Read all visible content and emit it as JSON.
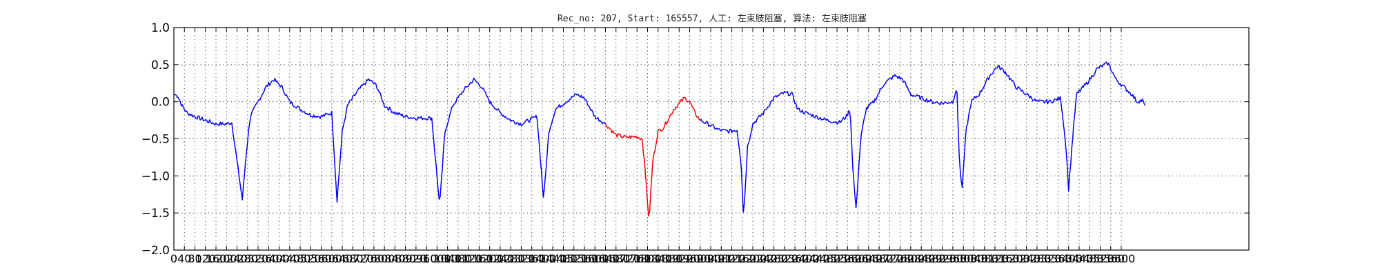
{
  "chart_data": {
    "type": "line",
    "title": "Rec_no: 207, Start: 165557, 人工: 左束肢阻塞, 算法: 左束肢阻塞",
    "xlabel": "",
    "ylabel": "",
    "xlim": [
      0,
      3800
    ],
    "ylim": [
      -2.0,
      1.0
    ],
    "grid": true,
    "yticks": [
      1.0,
      0.5,
      0.0,
      -0.5,
      -1.0,
      -1.5,
      -2.0
    ],
    "ytick_labels": [
      "1.0",
      "0.5",
      "0.0",
      "−0.5",
      "−1.0",
      "−1.5",
      "−2.0"
    ],
    "xticks": [
      0,
      40,
      80,
      120,
      160,
      200,
      240,
      280,
      320,
      360,
      400,
      440,
      480,
      520,
      560,
      600,
      640,
      680,
      720,
      760,
      800,
      840,
      880,
      920,
      960,
      1000,
      1040,
      1080,
      1120,
      1160,
      1200,
      1240,
      1280,
      1320,
      1360,
      1400,
      1440,
      1480,
      1520,
      1560,
      1600,
      1640,
      1680,
      1720,
      1760,
      1800,
      1840,
      1880,
      1920,
      1960,
      2000,
      2040,
      2080,
      2120,
      2160,
      2200,
      2240,
      2280,
      2320,
      2360,
      2400,
      2440,
      2480,
      2520,
      2560,
      2600,
      2640,
      2680,
      2720,
      2760,
      2800,
      2840,
      2880,
      2920,
      2960,
      3000,
      3040,
      3080,
      3120,
      3160,
      3200,
      3240,
      3280,
      3320,
      3360,
      3400,
      3440,
      3480,
      3520,
      3560,
      3600
    ],
    "xtick_labels": [
      "0",
      "40",
      "80",
      "120",
      "160",
      "200",
      "240",
      "280",
      "320",
      "360",
      "400",
      "440",
      "480",
      "520",
      "560",
      "600",
      "640",
      "680",
      "720",
      "760",
      "800",
      "840",
      "880",
      "920",
      "960",
      "1000",
      "1040",
      "1080",
      "1120",
      "1160",
      "1200",
      "1240",
      "1280",
      "1320",
      "1360",
      "1400",
      "1440",
      "1480",
      "1520",
      "1560",
      "1600",
      "1640",
      "1680",
      "1720",
      "1760",
      "1800",
      "1840",
      "1880",
      "1920",
      "1960",
      "2000",
      "2040",
      "2080",
      "2120",
      "2160",
      "2200",
      "2240",
      "2280",
      "2320",
      "2360",
      "2400",
      "2440",
      "2480",
      "2520",
      "2560",
      "2600",
      "2640",
      "2680",
      "2720",
      "2760",
      "2800",
      "2840",
      "2880",
      "2920",
      "2960",
      "3000",
      "3040",
      "3080",
      "3120",
      "3160",
      "3200",
      "3240",
      "3280",
      "3320",
      "3360",
      "3400",
      "3440",
      "3480",
      "3520",
      "3560",
      "3600"
    ],
    "series": [
      {
        "color": "#0000ff",
        "points": [
          [
            0,
            0.1
          ],
          [
            15,
            0.08
          ],
          [
            30,
            -0.05
          ],
          [
            50,
            -0.15
          ],
          [
            80,
            -0.2
          ],
          [
            120,
            -0.25
          ],
          [
            160,
            -0.3
          ],
          [
            200,
            -0.3
          ],
          [
            220,
            -0.28
          ],
          [
            240,
            -0.8
          ],
          [
            260,
            -1.32
          ],
          [
            275,
            -0.7
          ],
          [
            290,
            -0.2
          ],
          [
            320,
            0.0
          ],
          [
            350,
            0.2
          ],
          [
            380,
            0.3
          ],
          [
            410,
            0.2
          ],
          [
            440,
            0.0
          ],
          [
            480,
            -0.1
          ],
          [
            520,
            -0.18
          ],
          [
            560,
            -0.2
          ],
          [
            600,
            -0.15
          ],
          [
            620,
            -1.33
          ],
          [
            640,
            -0.4
          ],
          [
            660,
            -0.05
          ],
          [
            700,
            0.15
          ],
          [
            740,
            0.3
          ],
          [
            770,
            0.22
          ],
          [
            800,
            -0.05
          ],
          [
            840,
            -0.15
          ],
          [
            880,
            -0.2
          ],
          [
            920,
            -0.22
          ],
          [
            980,
            -0.22
          ],
          [
            1010,
            -1.4
          ],
          [
            1030,
            -0.4
          ],
          [
            1060,
            -0.05
          ],
          [
            1100,
            0.15
          ],
          [
            1140,
            0.3
          ],
          [
            1170,
            0.2
          ],
          [
            1200,
            0.0
          ],
          [
            1240,
            -0.15
          ],
          [
            1280,
            -0.25
          ],
          [
            1320,
            -0.3
          ],
          [
            1380,
            -0.2
          ],
          [
            1405,
            -1.32
          ],
          [
            1425,
            -0.4
          ],
          [
            1450,
            -0.1
          ],
          [
            1490,
            0.0
          ],
          [
            1530,
            0.1
          ],
          [
            1560,
            0.05
          ],
          [
            1600,
            -0.2
          ],
          [
            1640,
            -0.3
          ]
        ]
      },
      {
        "color": "#ff0000",
        "points": [
          [
            1640,
            -0.3
          ],
          [
            1680,
            -0.45
          ],
          [
            1720,
            -0.48
          ],
          [
            1760,
            -0.47
          ],
          [
            1780,
            -0.5
          ],
          [
            1795,
            -1.1
          ],
          [
            1805,
            -1.62
          ],
          [
            1820,
            -0.8
          ],
          [
            1840,
            -0.4
          ],
          [
            1860,
            -0.35
          ],
          [
            1900,
            -0.1
          ],
          [
            1940,
            0.05
          ],
          [
            1960,
            0.0
          ],
          [
            1980,
            -0.15
          ],
          [
            2000,
            -0.25
          ]
        ]
      },
      {
        "color": "#0000ff",
        "points": [
          [
            2000,
            -0.25
          ],
          [
            2030,
            -0.3
          ],
          [
            2070,
            -0.38
          ],
          [
            2110,
            -0.4
          ],
          [
            2140,
            -0.38
          ],
          [
            2155,
            -0.8
          ],
          [
            2165,
            -1.55
          ],
          [
            2180,
            -0.6
          ],
          [
            2200,
            -0.3
          ],
          [
            2240,
            -0.15
          ],
          [
            2280,
            0.05
          ],
          [
            2320,
            0.12
          ],
          [
            2350,
            0.1
          ],
          [
            2370,
            -0.1
          ],
          [
            2400,
            -0.15
          ],
          [
            2440,
            -0.2
          ],
          [
            2480,
            -0.25
          ],
          [
            2530,
            -0.28
          ],
          [
            2555,
            -0.2
          ],
          [
            2570,
            -0.1
          ],
          [
            2580,
            -0.9
          ],
          [
            2592,
            -1.45
          ],
          [
            2610,
            -0.5
          ],
          [
            2630,
            -0.1
          ],
          [
            2660,
            0.0
          ],
          [
            2700,
            0.25
          ],
          [
            2740,
            0.35
          ],
          [
            2770,
            0.3
          ],
          [
            2800,
            0.1
          ],
          [
            2840,
            0.05
          ],
          [
            2880,
            0.0
          ],
          [
            2920,
            -0.02
          ],
          [
            2960,
            0.0
          ],
          [
            2975,
            0.2
          ],
          [
            2985,
            -0.8
          ],
          [
            2995,
            -1.2
          ],
          [
            3010,
            -0.4
          ],
          [
            3030,
            0.0
          ],
          [
            3060,
            0.1
          ],
          [
            3100,
            0.35
          ],
          [
            3130,
            0.48
          ],
          [
            3160,
            0.4
          ],
          [
            3200,
            0.2
          ],
          [
            3240,
            0.1
          ],
          [
            3280,
            0.0
          ],
          [
            3330,
            0.0
          ],
          [
            3370,
            0.05
          ],
          [
            3390,
            -0.6
          ],
          [
            3400,
            -1.18
          ],
          [
            3415,
            -0.5
          ],
          [
            3430,
            0.1
          ],
          [
            3470,
            0.25
          ],
          [
            3510,
            0.45
          ],
          [
            3550,
            0.52
          ],
          [
            3580,
            0.3
          ],
          [
            3610,
            0.2
          ],
          [
            3640,
            0.1
          ],
          [
            3660,
            0.0
          ],
          [
            3680,
            0.02
          ],
          [
            3690,
            -0.05
          ]
        ]
      }
    ]
  }
}
